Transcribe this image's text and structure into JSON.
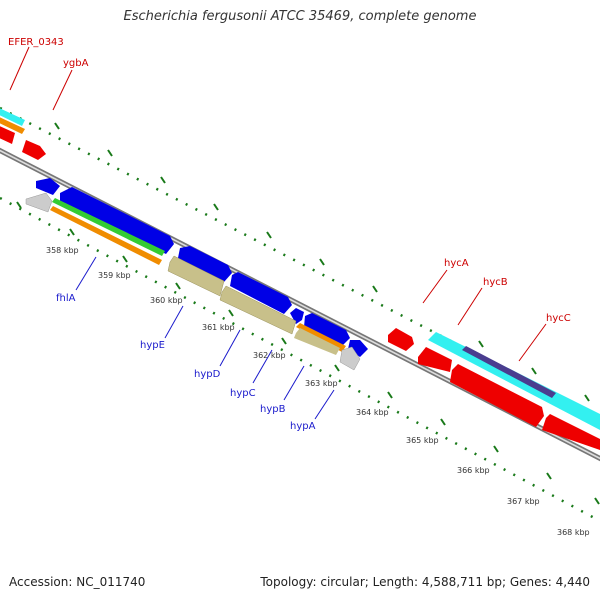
{
  "title": "Escherichia fergusonii ATCC 35469, complete genome",
  "footer": {
    "accession": "Accession: NC_011740",
    "summary": "Topology: circular; Length: 4,588,711 bp; Genes: 4,440"
  },
  "ticks": [
    "358 kbp",
    "359 kbp",
    "360 kbp",
    "361 kbp",
    "362 kbp",
    "363 kbp",
    "364 kbp",
    "365 kbp",
    "366 kbp",
    "367 kbp",
    "368 kbp"
  ],
  "red_labels": [
    "EFER_0343",
    "ygbA",
    "hycA",
    "hycB",
    "hycC"
  ],
  "blue_labels": [
    "fhlA",
    "hypE",
    "hypD",
    "hypC",
    "hypB",
    "hypA"
  ],
  "colors": {
    "forward_gene": "#0000e6",
    "reverse_gene": "#ee0000",
    "rna_or_grey": "#cccccc",
    "cyan_feature": "#33f0f0",
    "orange_feature": "#f08c00",
    "green_feature": "#33cc33",
    "khaki_feature": "#c8c08a",
    "purple_feature": "#4a3d8f",
    "backbone": "#888888",
    "tick_mark": "#1a7a1a",
    "label_red": "#cc0000",
    "label_blue": "#1a1acc"
  }
}
